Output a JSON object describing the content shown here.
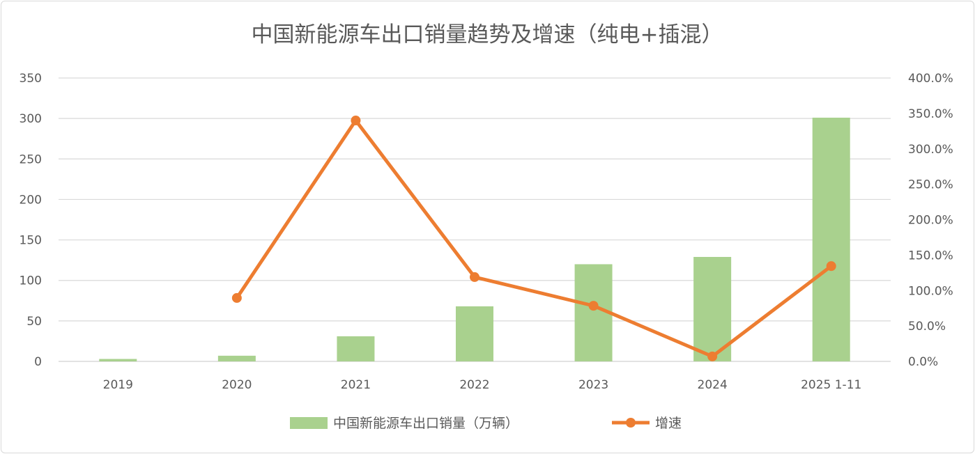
{
  "chart_data": {
    "type": "bar+line",
    "title": "中国新能源车出口销量趋势及增速（纯电+插混）",
    "categories": [
      "2019",
      "2020",
      "2021",
      "2022",
      "2023",
      "2024",
      "2025 1-11"
    ],
    "series": [
      {
        "name": "中国新能源车出口销量（万辆）",
        "type": "bar",
        "axis": "left",
        "color": "#a9d18e",
        "values": [
          3,
          7,
          31,
          68,
          120,
          129,
          301
        ]
      },
      {
        "name": "增速",
        "type": "line",
        "axis": "right",
        "color": "#ed7d31",
        "values": [
          null,
          89.5,
          340,
          119,
          78.5,
          7,
          134.5
        ]
      }
    ],
    "left_axis": {
      "ylim": [
        0,
        350
      ],
      "ticks": [
        "0",
        "50",
        "100",
        "150",
        "200",
        "250",
        "300",
        "350"
      ]
    },
    "right_axis": {
      "ylim": [
        0,
        400
      ],
      "ticks": [
        "0.0%",
        "50.0%",
        "100.0%",
        "150.0%",
        "200.0%",
        "250.0%",
        "300.0%",
        "350.0%",
        "400.0%"
      ]
    },
    "grid": true,
    "legend_position": "bottom"
  }
}
